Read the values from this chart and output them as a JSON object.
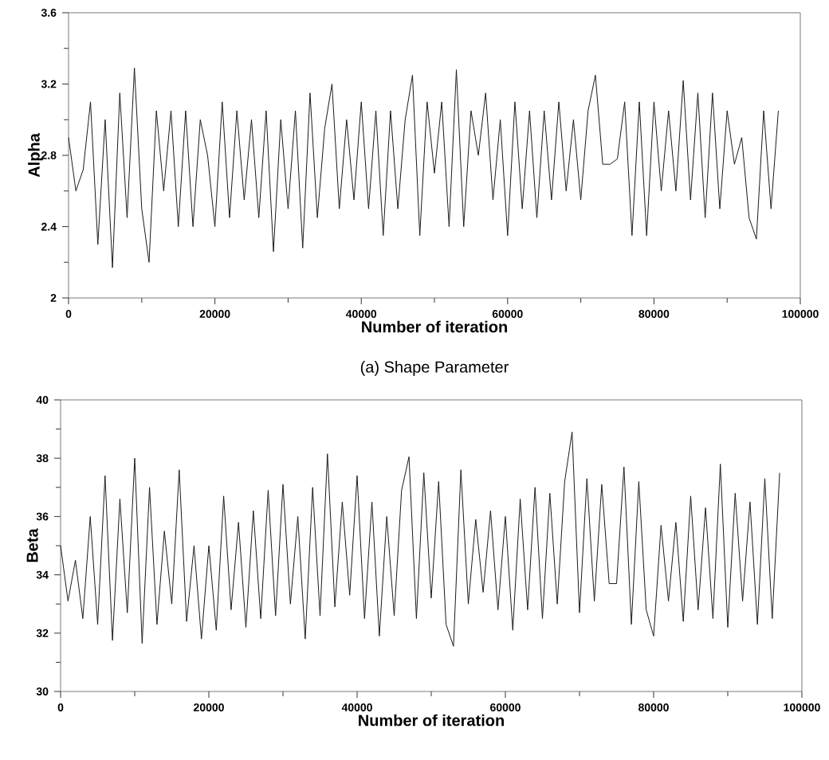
{
  "chart_data": [
    {
      "type": "line",
      "xlabel": "Number of iteration",
      "ylabel": "Alpha",
      "annotations": [
        "(a)  Shape  Parameter"
      ],
      "color": "#1a1a1a",
      "xlim": [
        0,
        100000
      ],
      "ylim": [
        2,
        3.6
      ],
      "xticks": [
        0,
        20000,
        40000,
        60000,
        80000,
        100000
      ],
      "yticks": [
        2,
        2.4,
        2.8,
        3.2,
        3.6
      ],
      "x": [
        0,
        1000,
        2000,
        3000,
        4000,
        5000,
        6000,
        7000,
        8000,
        9000,
        10000,
        11000,
        12000,
        13000,
        14000,
        15000,
        16000,
        17000,
        18000,
        19000,
        20000,
        21000,
        22000,
        23000,
        24000,
        25000,
        26000,
        27000,
        28000,
        29000,
        30000,
        31000,
        32000,
        33000,
        34000,
        35000,
        36000,
        37000,
        38000,
        39000,
        40000,
        41000,
        42000,
        43000,
        44000,
        45000,
        46000,
        47000,
        48000,
        49000,
        50000,
        51000,
        52000,
        53000,
        54000,
        55000,
        56000,
        57000,
        58000,
        59000,
        60000,
        61000,
        62000,
        63000,
        64000,
        65000,
        66000,
        67000,
        68000,
        69000,
        70000,
        71000,
        72000,
        73000,
        74000,
        75000,
        76000,
        77000,
        78000,
        79000,
        80000,
        81000,
        82000,
        83000,
        84000,
        85000,
        86000,
        87000,
        88000,
        89000,
        90000,
        91000,
        92000,
        93000,
        94000,
        95000,
        96000,
        97000
      ],
      "values": [
        2.9,
        2.6,
        2.72,
        3.1,
        2.3,
        3.0,
        2.17,
        3.15,
        2.45,
        3.29,
        2.5,
        2.2,
        3.05,
        2.6,
        3.05,
        2.4,
        3.05,
        2.4,
        3.0,
        2.8,
        2.4,
        3.1,
        2.45,
        3.05,
        2.55,
        3.0,
        2.45,
        3.05,
        2.26,
        3.0,
        2.5,
        3.05,
        2.28,
        3.15,
        2.45,
        2.95,
        3.2,
        2.5,
        3.0,
        2.55,
        3.1,
        2.5,
        3.05,
        2.35,
        3.05,
        2.5,
        3.0,
        3.25,
        2.35,
        3.1,
        2.7,
        3.1,
        2.4,
        3.28,
        2.4,
        3.05,
        2.8,
        3.15,
        2.55,
        3.0,
        2.35,
        3.1,
        2.5,
        3.05,
        2.45,
        3.05,
        2.55,
        3.1,
        2.6,
        3.0,
        2.55,
        3.05,
        3.25,
        2.75,
        2.75,
        2.78,
        3.1,
        2.35,
        3.1,
        2.35,
        3.1,
        2.6,
        3.05,
        2.6,
        3.22,
        2.55,
        3.15,
        2.45,
        3.15,
        2.5,
        3.05,
        2.75,
        2.9,
        2.45,
        2.33,
        3.05,
        2.5,
        3.05
      ]
    },
    {
      "type": "line",
      "xlabel": "Number of iteration",
      "ylabel": "Beta",
      "color": "#1a1a1a",
      "xlim": [
        0,
        100000
      ],
      "ylim": [
        30,
        40
      ],
      "xticks": [
        0,
        20000,
        40000,
        60000,
        80000,
        100000
      ],
      "yticks": [
        30,
        32,
        34,
        36,
        38,
        40
      ],
      "x": [
        0,
        1000,
        2000,
        3000,
        4000,
        5000,
        6000,
        7000,
        8000,
        9000,
        10000,
        11000,
        12000,
        13000,
        14000,
        15000,
        16000,
        17000,
        18000,
        19000,
        20000,
        21000,
        22000,
        23000,
        24000,
        25000,
        26000,
        27000,
        28000,
        29000,
        30000,
        31000,
        32000,
        33000,
        34000,
        35000,
        36000,
        37000,
        38000,
        39000,
        40000,
        41000,
        42000,
        43000,
        44000,
        45000,
        46000,
        47000,
        48000,
        49000,
        50000,
        51000,
        52000,
        53000,
        54000,
        55000,
        56000,
        57000,
        58000,
        59000,
        60000,
        61000,
        62000,
        63000,
        64000,
        65000,
        66000,
        67000,
        68000,
        69000,
        70000,
        71000,
        72000,
        73000,
        74000,
        75000,
        76000,
        77000,
        78000,
        79000,
        80000,
        81000,
        82000,
        83000,
        84000,
        85000,
        86000,
        87000,
        88000,
        89000,
        90000,
        91000,
        92000,
        93000,
        94000,
        95000,
        96000,
        97000
      ],
      "values": [
        35,
        33.1,
        34.5,
        32.5,
        36.0,
        32.3,
        37.4,
        31.75,
        36.6,
        32.7,
        38.0,
        31.65,
        37.0,
        32.3,
        35.5,
        33.0,
        37.6,
        32.4,
        35.0,
        31.8,
        35.0,
        32.1,
        36.7,
        32.8,
        35.8,
        32.2,
        36.2,
        32.5,
        36.9,
        32.6,
        37.1,
        33.0,
        36.0,
        31.8,
        37.0,
        32.6,
        38.15,
        32.9,
        36.5,
        33.3,
        37.4,
        32.5,
        36.5,
        31.9,
        36.0,
        32.6,
        36.9,
        38.05,
        32.5,
        37.5,
        33.2,
        37.2,
        32.3,
        31.55,
        37.6,
        33.0,
        35.9,
        33.4,
        36.2,
        32.8,
        36.0,
        32.1,
        36.6,
        32.8,
        37.0,
        32.5,
        36.8,
        33.0,
        37.2,
        38.9,
        32.7,
        37.3,
        33.1,
        37.1,
        33.7,
        33.7,
        37.7,
        32.3,
        37.2,
        32.8,
        31.9,
        35.7,
        33.1,
        35.8,
        32.4,
        36.7,
        32.8,
        36.3,
        32.5,
        37.8,
        32.2,
        36.8,
        33.1,
        36.5,
        32.3,
        37.3,
        32.5,
        37.5
      ]
    }
  ]
}
